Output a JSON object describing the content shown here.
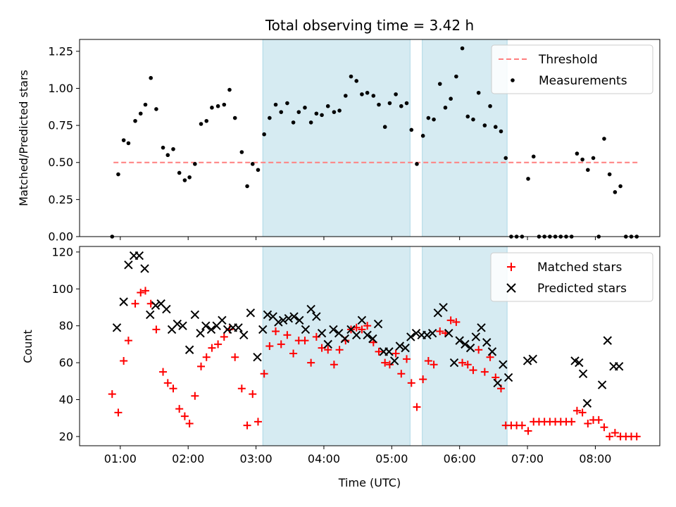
{
  "title": "Total observing time = 3.42 h",
  "colors": {
    "threshold": "#ff7f7f",
    "measurement": "#000000",
    "matched": "#ff0000",
    "predicted": "#000000",
    "highlight": "#add8e6"
  },
  "chart_data": [
    {
      "type": "scatter",
      "ylabel": "Matched/Predicted stars",
      "xlim": [
        0.4,
        8.95
      ],
      "ylim": [
        0,
        1.33
      ],
      "yticks": [
        0,
        0.25,
        0.5,
        0.75,
        1.0,
        1.25
      ],
      "yticklabels": [
        "0.00",
        "0.25",
        "0.50",
        "0.75",
        "1.00",
        "1.25"
      ],
      "grid": false,
      "legend_position": "top-right",
      "highlight_spans": [
        [
          3.1,
          5.27
        ],
        [
          5.45,
          6.7
        ]
      ],
      "threshold": {
        "name": "Threshold",
        "y": 0.5,
        "x_range": [
          0.9,
          8.65
        ]
      },
      "series": [
        {
          "name": "Measurements",
          "x": [
            0.88,
            0.97,
            1.05,
            1.12,
            1.22,
            1.3,
            1.37,
            1.45,
            1.53,
            1.63,
            1.7,
            1.78,
            1.87,
            1.95,
            2.02,
            2.1,
            2.19,
            2.27,
            2.35,
            2.44,
            2.53,
            2.61,
            2.69,
            2.79,
            2.87,
            2.95,
            3.03,
            3.12,
            3.2,
            3.29,
            3.37,
            3.46,
            3.55,
            3.63,
            3.72,
            3.81,
            3.89,
            3.97,
            4.06,
            4.15,
            4.23,
            4.32,
            4.4,
            4.48,
            4.56,
            4.64,
            4.73,
            4.81,
            4.9,
            4.97,
            5.06,
            5.14,
            5.22,
            5.29,
            5.37,
            5.46,
            5.54,
            5.62,
            5.71,
            5.79,
            5.87,
            5.95,
            6.04,
            6.12,
            6.2,
            6.28,
            6.37,
            6.45,
            6.53,
            6.61,
            6.68,
            6.76,
            6.84,
            6.92,
            7.01,
            7.09,
            7.17,
            7.25,
            7.33,
            7.41,
            7.49,
            7.57,
            7.65,
            7.73,
            7.81,
            7.89,
            7.97,
            8.05,
            8.13,
            8.21,
            8.29,
            8.37,
            8.45,
            8.53,
            8.61
          ],
          "y": [
            0.0,
            0.42,
            0.65,
            0.63,
            0.78,
            0.83,
            0.89,
            1.07,
            0.86,
            0.6,
            0.55,
            0.59,
            0.43,
            0.38,
            0.4,
            0.49,
            0.76,
            0.78,
            0.87,
            0.88,
            0.89,
            0.99,
            0.8,
            0.57,
            0.34,
            0.49,
            0.45,
            0.69,
            0.8,
            0.89,
            0.84,
            0.9,
            0.77,
            0.84,
            0.87,
            0.77,
            0.83,
            0.82,
            0.88,
            0.84,
            0.85,
            0.95,
            1.08,
            1.05,
            0.96,
            0.97,
            0.95,
            0.89,
            0.74,
            0.9,
            0.96,
            0.88,
            0.9,
            0.72,
            0.49,
            0.68,
            0.8,
            0.79,
            1.03,
            0.87,
            0.93,
            1.08,
            1.27,
            0.81,
            0.79,
            0.97,
            0.75,
            0.88,
            0.74,
            0.71,
            0.53,
            0.0,
            0.0,
            0.0,
            0.39,
            0.54,
            0.0,
            0.0,
            0.0,
            0.0,
            0.0,
            0.0,
            0.0,
            0.56,
            0.52,
            0.45,
            0.53,
            0.0,
            0.66,
            0.42,
            0.3,
            0.34,
            0.0,
            0.0,
            0.0
          ]
        }
      ]
    },
    {
      "type": "scatter",
      "xlabel": "Time (UTC)",
      "ylabel": "Count",
      "xlim": [
        0.4,
        8.95
      ],
      "ylim": [
        15,
        123
      ],
      "xticks": [
        1,
        2,
        3,
        4,
        5,
        6,
        7,
        8
      ],
      "xticklabels": [
        "01:00",
        "02:00",
        "03:00",
        "04:00",
        "05:00",
        "06:00",
        "07:00",
        "08:00"
      ],
      "yticks": [
        20,
        40,
        60,
        80,
        100,
        120
      ],
      "yticklabels": [
        "20",
        "40",
        "60",
        "80",
        "100",
        "120"
      ],
      "grid": false,
      "legend_position": "top-right",
      "highlight_spans": [
        [
          3.1,
          5.27
        ],
        [
          5.45,
          6.7
        ]
      ],
      "series": [
        {
          "name": "Matched stars",
          "x": [
            0.88,
            0.97,
            1.05,
            1.12,
            1.22,
            1.3,
            1.37,
            1.45,
            1.53,
            1.63,
            1.7,
            1.78,
            1.87,
            1.95,
            2.02,
            2.1,
            2.19,
            2.27,
            2.35,
            2.44,
            2.53,
            2.61,
            2.69,
            2.79,
            2.87,
            2.95,
            3.03,
            3.12,
            3.2,
            3.29,
            3.37,
            3.46,
            3.55,
            3.63,
            3.72,
            3.81,
            3.89,
            3.97,
            4.06,
            4.15,
            4.23,
            4.32,
            4.4,
            4.48,
            4.56,
            4.64,
            4.73,
            4.81,
            4.9,
            4.97,
            5.06,
            5.14,
            5.22,
            5.29,
            5.37,
            5.46,
            5.54,
            5.62,
            5.71,
            5.79,
            5.87,
            5.95,
            6.04,
            6.12,
            6.2,
            6.28,
            6.37,
            6.45,
            6.53,
            6.61,
            6.68,
            6.76,
            6.84,
            6.92,
            7.01,
            7.09,
            7.17,
            7.25,
            7.33,
            7.41,
            7.49,
            7.57,
            7.65,
            7.73,
            7.81,
            7.89,
            7.97,
            8.05,
            8.13,
            8.21,
            8.29,
            8.37,
            8.45,
            8.53,
            8.61
          ],
          "y": [
            43,
            33,
            61,
            72,
            92,
            98,
            99,
            92,
            78,
            55,
            49,
            46,
            35,
            31,
            27,
            42,
            58,
            63,
            68,
            70,
            74,
            78,
            63,
            46,
            26,
            43,
            28,
            54,
            69,
            77,
            70,
            75,
            65,
            72,
            72,
            60,
            74,
            68,
            67,
            59,
            67,
            72,
            78,
            79,
            78,
            80,
            71,
            66,
            60,
            59,
            65,
            54,
            62,
            49,
            36,
            51,
            61,
            59,
            77,
            76,
            83,
            82,
            60,
            59,
            56,
            67,
            55,
            63,
            52,
            46,
            26,
            26,
            26,
            26,
            23,
            28,
            28,
            28,
            28,
            28,
            28,
            28,
            28,
            34,
            33,
            27,
            29,
            29,
            25,
            20,
            22,
            20,
            20,
            20,
            20
          ]
        },
        {
          "name": "Predicted stars",
          "x": [
            0.95,
            1.05,
            1.12,
            1.2,
            1.28,
            1.36,
            1.44,
            1.52,
            1.6,
            1.68,
            1.76,
            1.84,
            1.92,
            2.02,
            2.1,
            2.18,
            2.26,
            2.34,
            2.42,
            2.5,
            2.58,
            2.66,
            2.74,
            2.82,
            2.92,
            3.02,
            3.1,
            3.17,
            3.25,
            3.33,
            3.4,
            3.48,
            3.56,
            3.64,
            3.73,
            3.81,
            3.89,
            3.97,
            4.06,
            4.14,
            4.22,
            4.31,
            4.4,
            4.48,
            4.56,
            4.64,
            4.72,
            4.8,
            4.88,
            4.96,
            5.04,
            5.12,
            5.2,
            5.28,
            5.36,
            5.44,
            5.52,
            5.6,
            5.68,
            5.76,
            5.84,
            5.92,
            6.0,
            6.08,
            6.16,
            6.24,
            6.32,
            6.4,
            6.48,
            6.56,
            6.64,
            6.72,
            7.0,
            7.08,
            7.7,
            7.76,
            7.82,
            7.88,
            8.1,
            8.18,
            8.27,
            8.35
          ],
          "y": [
            79,
            93,
            113,
            118,
            118,
            111,
            86,
            91,
            92,
            89,
            78,
            81,
            80,
            67,
            86,
            76,
            80,
            78,
            80,
            83,
            78,
            79,
            79,
            75,
            87,
            63,
            78,
            86,
            85,
            82,
            83,
            84,
            85,
            83,
            78,
            89,
            85,
            76,
            70,
            78,
            76,
            73,
            78,
            75,
            83,
            75,
            73,
            81,
            66,
            66,
            61,
            69,
            68,
            74,
            76,
            75,
            75,
            76,
            87,
            90,
            76,
            60,
            72,
            70,
            68,
            74,
            79,
            71,
            66,
            49,
            59,
            52,
            61,
            62,
            61,
            60,
            54,
            38,
            48,
            72,
            58,
            58
          ]
        }
      ]
    }
  ]
}
